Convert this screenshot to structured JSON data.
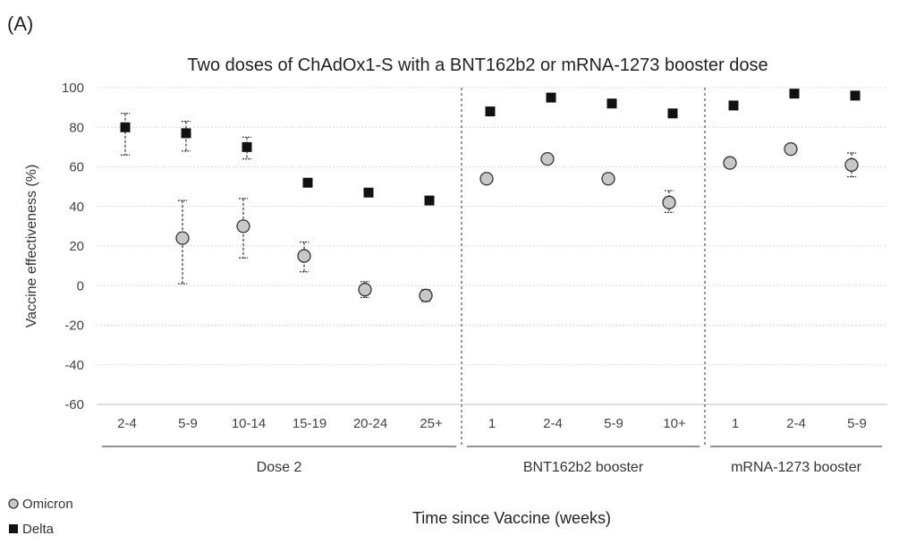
{
  "figure": {
    "panel_label": "(A)",
    "legend_omicron": "Omicron",
    "legend_delta": "Delta"
  },
  "chart_data": {
    "type": "scatter",
    "title": "Two doses of ChAdOx1-S with a BNT162b2 or mRNA-1273 booster dose",
    "xlabel": "Time since Vaccine (weeks)",
    "ylabel": "Vaccine effectiveness (%)",
    "ylim": [
      -60,
      100
    ],
    "yticks": [
      100,
      80,
      60,
      40,
      20,
      0,
      -20,
      -40,
      -60
    ],
    "grid": true,
    "legend_position": "bottom-left",
    "categories": [
      "2-4",
      "5-9",
      "10-14",
      "15-19",
      "20-24",
      "25+",
      "1",
      "2-4",
      "5-9",
      "10+",
      "1",
      "2-4",
      "5-9"
    ],
    "groups": [
      {
        "label": "Dose 2",
        "start": 0,
        "end": 5
      },
      {
        "label": "BNT162b2 booster",
        "start": 6,
        "end": 9
      },
      {
        "label": "mRNA-1273 booster",
        "start": 10,
        "end": 12
      }
    ],
    "series": [
      {
        "name": "Omicron",
        "marker": "circle",
        "values": [
          null,
          24,
          30,
          15,
          -2,
          -5,
          54,
          64,
          54,
          42,
          62,
          69,
          61
        ],
        "lower": [
          null,
          1,
          14,
          7,
          -6,
          -8,
          null,
          null,
          null,
          37,
          null,
          null,
          55
        ],
        "upper": [
          null,
          43,
          44,
          22,
          2,
          -2,
          null,
          null,
          null,
          48,
          null,
          null,
          67
        ]
      },
      {
        "name": "Delta",
        "marker": "square",
        "values": [
          80,
          77,
          70,
          52,
          47,
          43,
          88,
          95,
          92,
          87,
          91,
          97,
          96
        ],
        "lower": [
          66,
          68,
          64,
          null,
          null,
          null,
          null,
          null,
          null,
          null,
          null,
          null,
          null
        ],
        "upper": [
          87,
          83,
          75,
          null,
          null,
          null,
          null,
          null,
          null,
          null,
          null,
          null,
          null
        ]
      }
    ]
  }
}
